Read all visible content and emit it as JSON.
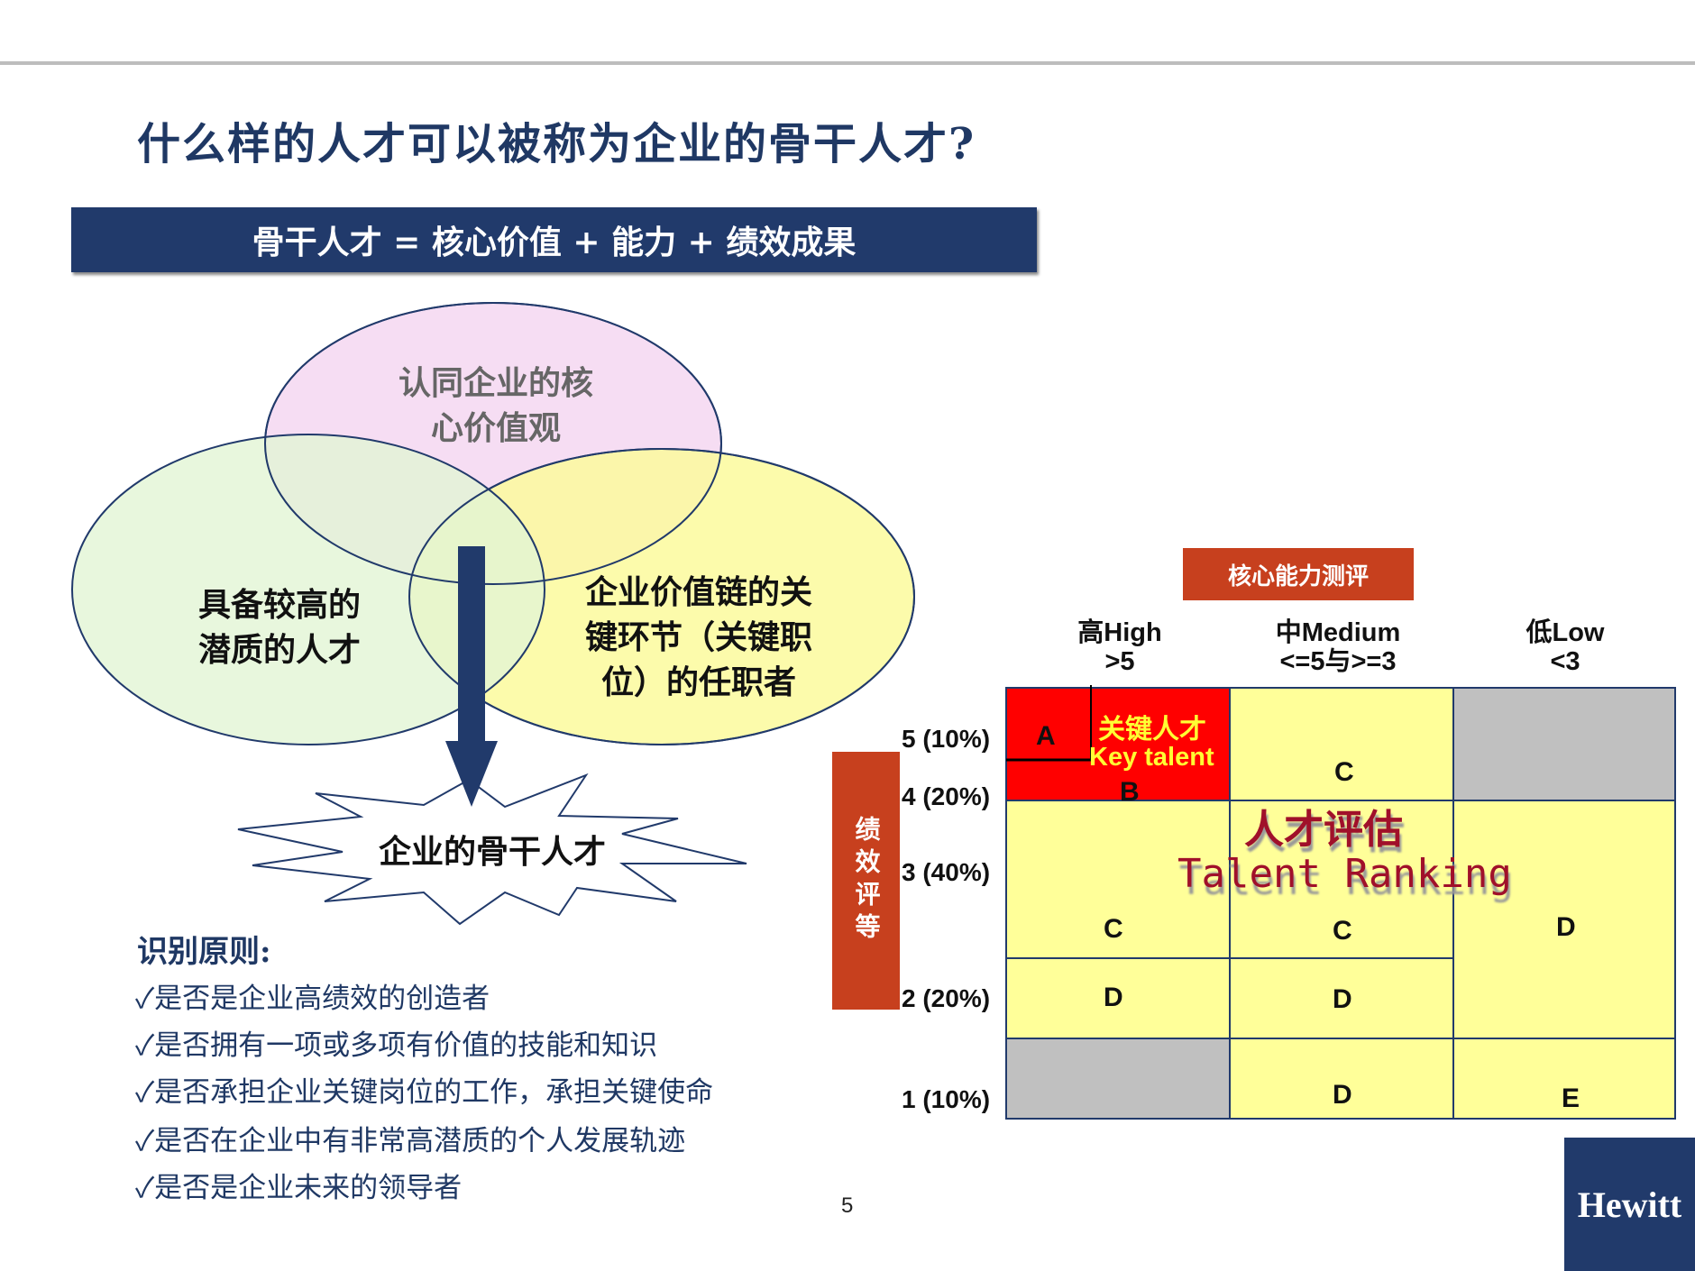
{
  "title": "什么样的人才可以被称为企业的骨干人才?",
  "banner": "骨干人才 = 核心价值 + 能力 + 绩效成果",
  "venn": {
    "top": [
      "认同企业的核",
      "心价值观"
    ],
    "left": [
      "具备较高的",
      "潜质的人才"
    ],
    "right": [
      "企业价值链的关",
      "键环节（关键职",
      "位）的任职者"
    ],
    "result": "企业的骨干人才",
    "colors": {
      "top": "#f5d9f2",
      "left": "#e2f5d4",
      "right": "#fbfa9c",
      "arrow": "#213a6b"
    }
  },
  "principles": {
    "title": "识别原则:",
    "items": [
      "✓是否是企业高绩效的创造者",
      "✓是否拥有一项或多项有价值的技能和知识",
      "✓是否承担企业关键岗位的工作，承担关键使命",
      "✓是否在企业中有非常高潜质的个人发展轨迹",
      "✓是否是企业未来的领导者"
    ]
  },
  "matrix": {
    "x_title": "核心能力测评",
    "y_title": "绩效评等",
    "columns": [
      {
        "l1": "高High",
        "l2": ">5"
      },
      {
        "l1": "中Medium",
        "l2": "<=5与>=3"
      },
      {
        "l1": "低Low",
        "l2": "<3"
      }
    ],
    "rows": [
      "5 (10%)",
      "4 (20%)",
      "3 (40%)",
      "2 (20%)",
      "1 (10%)"
    ],
    "cells": {
      "a": "A",
      "b": "B",
      "key_cn": "关键人才",
      "key_en": "Key talent",
      "c1": "C",
      "c2": "C",
      "c3": "C",
      "d1": "D",
      "d2": "D",
      "d3": "D",
      "d4": "D",
      "e": "E"
    },
    "watermark_cn": "人才评估",
    "watermark_en": "Talent Ranking",
    "colors": {
      "red": "#ff0000",
      "yellow": "#ffff99",
      "gray": "#c0c0c0",
      "header": "#c7401e"
    }
  },
  "page_number": "5",
  "logo": "Hewitt"
}
